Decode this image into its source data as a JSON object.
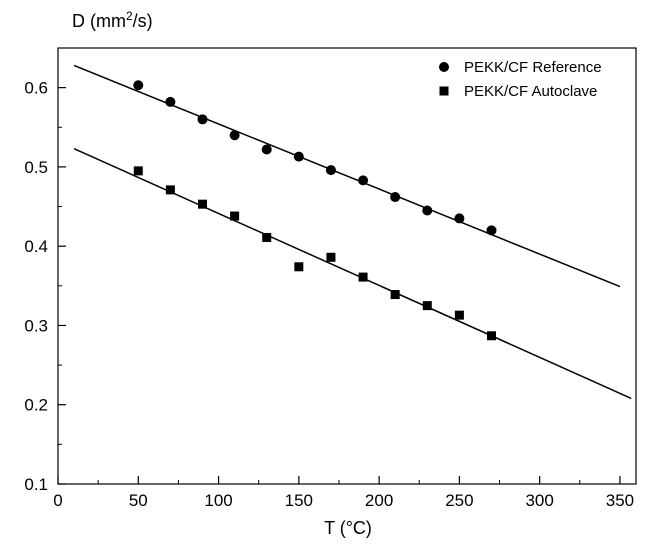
{
  "chart_data": {
    "type": "scatter",
    "xlabel": "T (°C)",
    "ylabel_base": "D (mm",
    "ylabel_sup": "2",
    "ylabel_tail": "/s)",
    "xlim": [
      0,
      360
    ],
    "ylim": [
      0.1,
      0.65
    ],
    "xticks": [
      0,
      50,
      100,
      150,
      200,
      250,
      300,
      350
    ],
    "yticks": [
      0.1,
      0.2,
      0.3,
      0.4,
      0.5,
      0.6
    ],
    "ytick_labels": [
      "0.1",
      "0.2",
      "0.3",
      "0.4",
      "0.5",
      "0.6"
    ],
    "grid": false,
    "legend_position": "top-right",
    "series": [
      {
        "name": "PEKK/CF Reference",
        "marker": "circle",
        "color": "#000000",
        "x": [
          50,
          70,
          90,
          110,
          130,
          150,
          170,
          190,
          210,
          230,
          250,
          270
        ],
        "y": [
          0.603,
          0.582,
          0.56,
          0.54,
          0.522,
          0.513,
          0.496,
          0.483,
          0.462,
          0.445,
          0.435,
          0.42
        ],
        "fit": {
          "x": [
            10,
            350
          ],
          "y": [
            0.628,
            0.349
          ]
        }
      },
      {
        "name": "PEKK/CF Autoclave",
        "marker": "square",
        "color": "#000000",
        "x": [
          50,
          70,
          90,
          110,
          130,
          150,
          170,
          190,
          210,
          230,
          250,
          270
        ],
        "y": [
          0.495,
          0.471,
          0.453,
          0.438,
          0.411,
          0.374,
          0.386,
          0.361,
          0.339,
          0.325,
          0.313,
          0.287
        ],
        "fit": {
          "x": [
            10,
            357
          ],
          "y": [
            0.523,
            0.208
          ]
        }
      }
    ]
  }
}
